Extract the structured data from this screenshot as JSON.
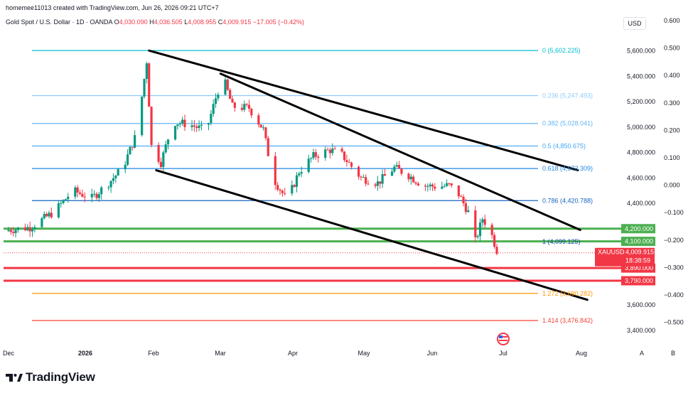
{
  "header": {
    "credit": "homemee11013 created with TradingView.com, Jun 26, 2026 09:21 UTC+7",
    "symbol": "Gold Spot / U.S. Dollar · 1D · OANDA",
    "o_label": "O",
    "o_value": "4,030.090",
    "h_label": "H",
    "h_value": "4,036.505",
    "l_label": "L",
    "l_value": "4,008.955",
    "c_label": "C",
    "c_value": "4,009.915",
    "change": "−17.005 (−0.42%)"
  },
  "currency_button": "USD",
  "footer": {
    "brand": "TradingView"
  },
  "bottom_buttons": {
    "auto": "A",
    "log": "B"
  },
  "price_tag": {
    "symbol": "XAUUSD",
    "price": "4,009.915",
    "countdown": "18:38:59"
  },
  "colors": {
    "up": "#089981",
    "down": "#f23645",
    "support": "#4caf50",
    "resistance": "#f23645"
  },
  "chart_data": {
    "type": "candlestick",
    "x_ticks": [
      "Dec",
      "2026",
      "Feb",
      "Mar",
      "Apr",
      "May",
      "Jun",
      "Jul",
      "Aug"
    ],
    "price_ticks": [
      "5,600.000",
      "5,400.000",
      "5,200.000",
      "5,000.000",
      "4,800.000",
      "4,600.000",
      "4,400.000",
      "3,600.000",
      "3,400.000"
    ],
    "right_ticks": [
      "0.600",
      "0.500",
      "0.400",
      "0.300",
      "0.200",
      "0.100",
      "0.000",
      "−0.100",
      "−0.200",
      "−0.300",
      "−0.400",
      "−0.500"
    ],
    "fib_levels": [
      {
        "label": "0 (5,602.225)",
        "price": 5602.225,
        "color": "#00bcd4"
      },
      {
        "label": "0.236 (5,247.493)",
        "price": 5247.493,
        "color": "#90caf9"
      },
      {
        "label": "0.382 (5,028.041)",
        "price": 5028.041,
        "color": "#64b5f6"
      },
      {
        "label": "0.5 (4,850.675)",
        "price": 4850.675,
        "color": "#42a5f5"
      },
      {
        "label": "0.618 (4,673.309)",
        "price": 4673.309,
        "color": "#1e88e5"
      },
      {
        "label": "0.786 (4,420.788)",
        "price": 4420.788,
        "color": "#1565c0"
      },
      {
        "label": "1 (4,099.125)",
        "price": 4099.125,
        "color": "#0d47a1"
      },
      {
        "label": "1.272 (3,690.282)",
        "price": 3690.282,
        "color": "#ff9800"
      },
      {
        "label": "1.414 (3,476.842)",
        "price": 3476.842,
        "color": "#f44336"
      }
    ],
    "support_lines": [
      {
        "label": "4,200.000",
        "price": 4200,
        "color": "#4caf50"
      },
      {
        "label": "4,100.000",
        "price": 4100,
        "color": "#4caf50"
      }
    ],
    "resistance_lines": [
      {
        "label": "3,890.000",
        "price": 3890,
        "color": "#f23645"
      },
      {
        "label": "3,790.000",
        "price": 3790,
        "color": "#f23645"
      }
    ],
    "trendlines": [
      {
        "from": [
          "2026-01-29",
          5602
        ],
        "to": [
          "2026-07-28",
          4660
        ]
      },
      {
        "from": [
          "2026-02-28",
          5420
        ],
        "to": [
          "2026-07-29",
          4190
        ]
      },
      {
        "from": [
          "2026-02-01",
          4660
        ],
        "to": [
          "2026-08-01",
          3640
        ]
      }
    ],
    "last_price": 4009.915
  }
}
